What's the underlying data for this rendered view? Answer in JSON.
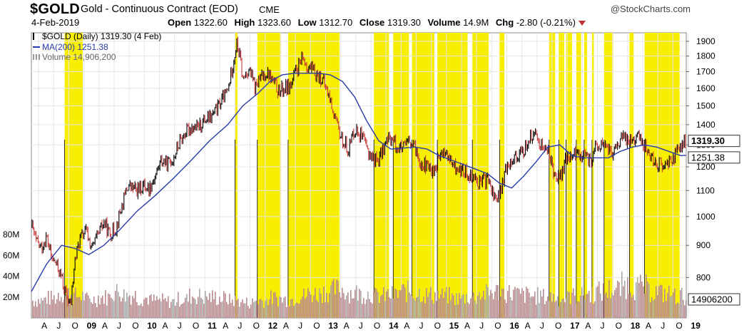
{
  "header": {
    "symbol": "$GOLD",
    "description": "Gold - Continuous Contract (EOD)",
    "exchange": "CME",
    "brand": "@StockCharts.com",
    "date": "4-Feb-2019",
    "open_label": "Open",
    "open": "1322.60",
    "high_label": "High",
    "high": "1323.60",
    "low_label": "Low",
    "low": "1312.70",
    "close_label": "Close",
    "close": "1319.30",
    "volume_label": "Volume",
    "volume": "14.9M",
    "chg_label": "Chg",
    "chg": "-2.80 (-0.21%)"
  },
  "legend": {
    "price": "$GOLD (Daily) 1319.30 (4 Feb)",
    "ma": "MA(200) 1251.38",
    "volume": "Volume 14,906,200"
  },
  "colors": {
    "price": "#000000",
    "price_down": "#c83838",
    "ma": "#2a3caa",
    "highlight": "#f7ee00",
    "volume": "#b98a8e",
    "volume_gray": "#a9a9a9",
    "grid": "#e6e6e6"
  },
  "chart_data": {
    "type": "line",
    "y_scale": "log",
    "ylim": [
      690,
      1960
    ],
    "y_ticks": [
      800,
      900,
      1000,
      1100,
      1200,
      1300,
      1400,
      1500,
      1600,
      1700,
      1800,
      1900
    ],
    "volume_ticks": [
      "20M",
      "40M",
      "60M",
      "80M"
    ],
    "volume_tick_values": [
      20,
      40,
      60,
      80
    ],
    "x_labels": [
      "A",
      "J",
      "O",
      "09",
      "A",
      "J",
      "O",
      "10",
      "A",
      "J",
      "O",
      "11",
      "A",
      "J",
      "O",
      "12",
      "A",
      "J",
      "O",
      "13",
      "A",
      "J",
      "O",
      "14",
      "A",
      "J",
      "O",
      "15",
      "A",
      "J",
      "O",
      "16",
      "A",
      "J",
      "O",
      "17",
      "A",
      "J",
      "O",
      "18",
      "A",
      "J",
      "O",
      "19"
    ],
    "x_label_bold": [
      "09",
      "10",
      "11",
      "12",
      "13",
      "14",
      "15",
      "16",
      "17",
      "18",
      "19"
    ],
    "price_tag": "1319.30",
    "ma_tag": "1251.38",
    "volume_tag": "14906200",
    "series": [
      {
        "name": "$GOLD",
        "x": [
          2008.25,
          2008.33,
          2008.42,
          2008.5,
          2008.58,
          2008.66,
          2008.75,
          2008.8,
          2008.85,
          2008.9,
          2008.97,
          2009.05,
          2009.15,
          2009.25,
          2009.35,
          2009.45,
          2009.55,
          2009.65,
          2009.75,
          2009.85,
          2009.92,
          2010.0,
          2010.1,
          2010.2,
          2010.3,
          2010.4,
          2010.5,
          2010.6,
          2010.7,
          2010.8,
          2010.9,
          2011.0,
          2011.1,
          2011.2,
          2011.3,
          2011.4,
          2011.5,
          2011.6,
          2011.65,
          2011.7,
          2011.75,
          2011.85,
          2011.95,
          2012.05,
          2012.15,
          2012.25,
          2012.35,
          2012.45,
          2012.55,
          2012.65,
          2012.75,
          2012.85,
          2012.95,
          2013.05,
          2013.15,
          2013.25,
          2013.3,
          2013.4,
          2013.5,
          2013.6,
          2013.7,
          2013.8,
          2013.9,
          2014.0,
          2014.1,
          2014.2,
          2014.3,
          2014.4,
          2014.5,
          2014.6,
          2014.7,
          2014.8,
          2014.9,
          2015.0,
          2015.1,
          2015.2,
          2015.3,
          2015.4,
          2015.5,
          2015.6,
          2015.7,
          2015.8,
          2015.9,
          2016.0,
          2016.1,
          2016.2,
          2016.3,
          2016.4,
          2016.5,
          2016.6,
          2016.7,
          2016.8,
          2016.9,
          2017.0,
          2017.1,
          2017.2,
          2017.3,
          2017.4,
          2017.5,
          2017.6,
          2017.7,
          2017.8,
          2017.9,
          2018.0,
          2018.1,
          2018.2,
          2018.3,
          2018.4,
          2018.5,
          2018.6,
          2018.7,
          2018.8,
          2018.9,
          2019.0,
          2019.09
        ],
        "values": [
          970,
          910,
          890,
          930,
          860,
          840,
          800,
          760,
          740,
          720,
          850,
          920,
          950,
          890,
          930,
          980,
          935,
          960,
          1040,
          1120,
          1110,
          1100,
          1120,
          1110,
          1160,
          1230,
          1210,
          1240,
          1310,
          1360,
          1390,
          1380,
          1420,
          1430,
          1470,
          1530,
          1580,
          1780,
          1880,
          1800,
          1650,
          1720,
          1600,
          1660,
          1700,
          1640,
          1580,
          1600,
          1620,
          1720,
          1780,
          1720,
          1690,
          1660,
          1580,
          1470,
          1400,
          1320,
          1280,
          1380,
          1350,
          1280,
          1240,
          1230,
          1300,
          1340,
          1290,
          1280,
          1310,
          1280,
          1220,
          1200,
          1180,
          1240,
          1270,
          1210,
          1190,
          1180,
          1170,
          1150,
          1130,
          1150,
          1080,
          1070,
          1190,
          1240,
          1250,
          1270,
          1340,
          1340,
          1300,
          1270,
          1180,
          1150,
          1230,
          1250,
          1260,
          1250,
          1220,
          1290,
          1300,
          1280,
          1260,
          1330,
          1330,
          1330,
          1340,
          1300,
          1250,
          1220,
          1200,
          1220,
          1250,
          1290,
          1319.3
        ]
      },
      {
        "name": "MA(200)",
        "x": [
          2008.25,
          2008.5,
          2008.75,
          2008.97,
          2009.2,
          2009.45,
          2009.7,
          2010.0,
          2010.3,
          2010.6,
          2010.9,
          2011.2,
          2011.5,
          2011.75,
          2012.0,
          2012.2,
          2012.4,
          2012.6,
          2012.8,
          2013.0,
          2013.2,
          2013.4,
          2013.6,
          2013.8,
          2014.0,
          2014.2,
          2014.4,
          2014.6,
          2014.8,
          2015.0,
          2015.2,
          2015.4,
          2015.6,
          2015.8,
          2016.0,
          2016.2,
          2016.4,
          2016.6,
          2016.8,
          2017.0,
          2017.2,
          2017.4,
          2017.6,
          2017.8,
          2018.0,
          2018.2,
          2018.4,
          2018.6,
          2018.8,
          2019.0,
          2019.09
        ],
        "values": [
          760,
          840,
          900,
          890,
          870,
          900,
          950,
          1020,
          1080,
          1150,
          1230,
          1320,
          1400,
          1500,
          1570,
          1640,
          1680,
          1690,
          1690,
          1690,
          1680,
          1640,
          1550,
          1420,
          1320,
          1280,
          1285,
          1290,
          1280,
          1250,
          1230,
          1210,
          1190,
          1170,
          1130,
          1110,
          1160,
          1220,
          1290,
          1300,
          1250,
          1240,
          1240,
          1240,
          1270,
          1290,
          1300,
          1290,
          1270,
          1250,
          1251.38
        ]
      }
    ],
    "highlight_ranges": [
      [
        2008.8,
        2009.1
      ],
      [
        2011.62,
        2011.66
      ],
      [
        2011.99,
        2012.38
      ],
      [
        2012.5,
        2013.35
      ],
      [
        2013.92,
        2014.17
      ],
      [
        2014.24,
        2014.5
      ],
      [
        2014.55,
        2014.92
      ],
      [
        2014.97,
        2015.47
      ],
      [
        2015.55,
        2015.82
      ],
      [
        2016.0,
        2016.08
      ],
      [
        2016.82,
        2016.92
      ],
      [
        2016.98,
        2017.07
      ],
      [
        2017.1,
        2017.2
      ],
      [
        2017.27,
        2017.35
      ],
      [
        2017.4,
        2017.45
      ],
      [
        2017.53,
        2017.56
      ],
      [
        2017.73,
        2017.88
      ],
      [
        2018.15,
        2018.22
      ],
      [
        2018.4,
        2018.98
      ]
    ],
    "volume": {
      "x_start": 2008.25,
      "x_end": 2019.09,
      "level_m": [
        16,
        18,
        22,
        20,
        17,
        19,
        24,
        21,
        18,
        16,
        15,
        17,
        20,
        19,
        18,
        16,
        14,
        16,
        18,
        17,
        20,
        22,
        24,
        26,
        23,
        22,
        20,
        21,
        24,
        23,
        21,
        20,
        18,
        19,
        22,
        24,
        23,
        21,
        20,
        19,
        18,
        20,
        22,
        24,
        26,
        30,
        28,
        24,
        22,
        20
      ]
    }
  }
}
